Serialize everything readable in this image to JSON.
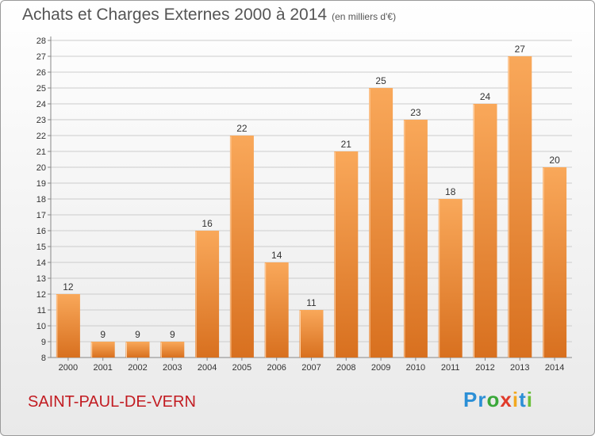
{
  "header": {
    "title": "Achats et Charges Externes 2000 à 2014",
    "unit": "(en milliers d'€)"
  },
  "footer": {
    "commune": "SAINT-PAUL-DE-VERN",
    "logo_letters": [
      "P",
      "r",
      "o",
      "x",
      "i",
      "t",
      "i"
    ],
    "logo_colors": [
      "#2b8fd6",
      "#2b8fd6",
      "#3aa83a",
      "#e03a2a",
      "#f2a81f",
      "#2b8fd6",
      "#6abf3a"
    ]
  },
  "colors": {
    "bar_top": "#f9a85a",
    "bar_bottom": "#d8701f",
    "grid": "#cccccc"
  },
  "chart_data": {
    "type": "bar",
    "title": "Achats et Charges Externes 2000 à 2014",
    "subtitle": "(en milliers d'€)",
    "categories": [
      "2000",
      "2001",
      "2002",
      "2003",
      "2004",
      "2005",
      "2006",
      "2007",
      "2008",
      "2009",
      "2010",
      "2011",
      "2012",
      "2013",
      "2014"
    ],
    "values": [
      12,
      9,
      9,
      9,
      16,
      22,
      14,
      11,
      21,
      25,
      23,
      18,
      24,
      27,
      20
    ],
    "ylim": [
      8,
      28
    ],
    "yticks": [
      8,
      9,
      10,
      11,
      12,
      13,
      14,
      15,
      16,
      17,
      18,
      19,
      20,
      21,
      22,
      23,
      24,
      25,
      26,
      27,
      28
    ],
    "grid": true,
    "legend": "none"
  }
}
